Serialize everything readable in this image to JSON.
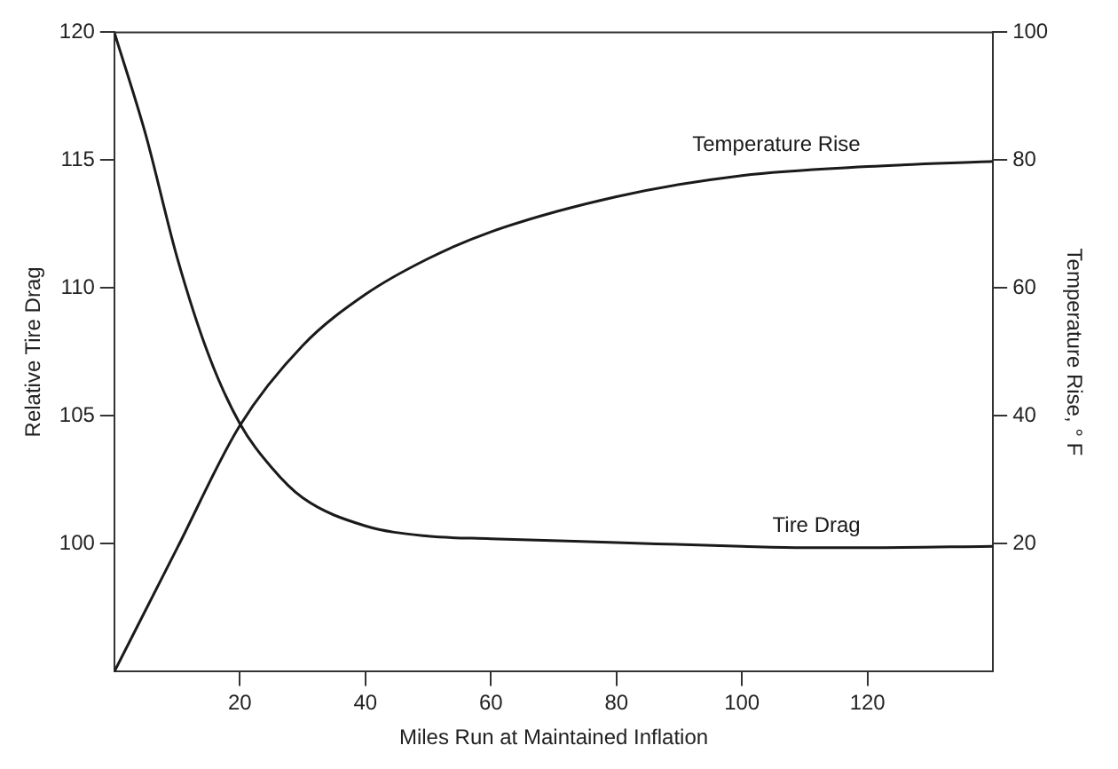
{
  "chart_data": {
    "type": "line",
    "xlabel": "Miles Run at Maintained Inflation",
    "ylabel": "Relative Tire Drag",
    "y2label": "Temperature Rise, ° F",
    "xlim": [
      0,
      140
    ],
    "xticks": [
      20,
      40,
      60,
      80,
      100,
      120
    ],
    "ylim": [
      95,
      120
    ],
    "yticks": [
      100,
      105,
      110,
      115,
      120
    ],
    "y2lim": [
      0,
      100
    ],
    "y2ticks": [
      20,
      40,
      60,
      80,
      100
    ],
    "grid": false,
    "legend": false,
    "marker": "none",
    "line_style": "solid",
    "series": [
      {
        "name": "Temperature Rise",
        "color": "#1a1a1a",
        "axis": "y2",
        "x": [
          0,
          10,
          20,
          30,
          40,
          50,
          60,
          80,
          100,
          120,
          140
        ],
        "values": [
          0,
          19.3,
          38.5,
          51,
          59,
          64.6,
          68.8,
          74.3,
          77.6,
          79,
          79.8
        ]
      },
      {
        "name": "Tire Drag",
        "color": "#1a1a1a",
        "axis": "y",
        "x": [
          0,
          5,
          10,
          15,
          20,
          25,
          30,
          40,
          50,
          60,
          80,
          100,
          110,
          120,
          140
        ],
        "values": [
          120,
          116,
          111.2,
          107.4,
          104.7,
          103,
          101.8,
          100.7,
          100.3,
          100.2,
          100.05,
          99.9,
          99.85,
          99.85,
          99.9
        ]
      }
    ]
  }
}
